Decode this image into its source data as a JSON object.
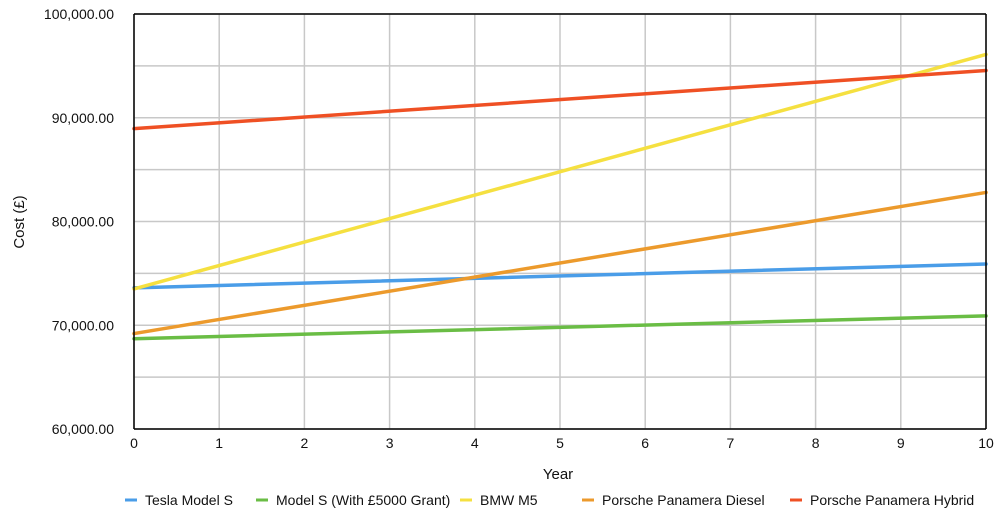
{
  "chart_data": {
    "type": "line",
    "title": "",
    "xlabel": "Year",
    "ylabel": "Cost (£)",
    "x": [
      0,
      10
    ],
    "xlim": [
      0,
      10
    ],
    "ylim": [
      60000,
      100000
    ],
    "x_ticks": [
      "0",
      "1",
      "2",
      "3",
      "4",
      "5",
      "6",
      "7",
      "8",
      "9",
      "10"
    ],
    "y_ticks": [
      "60,000.00",
      "70,000.00",
      "80,000.00",
      "90,000.00",
      "100,000.00"
    ],
    "grid": true,
    "legend_position": "bottom",
    "series": [
      {
        "name": "Tesla Model S",
        "color": "#4a9de8",
        "values": [
          73600,
          75900
        ]
      },
      {
        "name": "Model S (With £5000 Grant)",
        "color": "#6abd45",
        "values": [
          68700,
          70900
        ]
      },
      {
        "name": "BMW M5",
        "color": "#f5e040",
        "values": [
          73500,
          96100
        ]
      },
      {
        "name": "Porsche Panamera Diesel",
        "color": "#ec9a2c",
        "values": [
          69200,
          82800
        ]
      },
      {
        "name": "Porsche Panamera Hybrid",
        "color": "#ef5024",
        "values": [
          88950,
          94550
        ]
      }
    ]
  }
}
